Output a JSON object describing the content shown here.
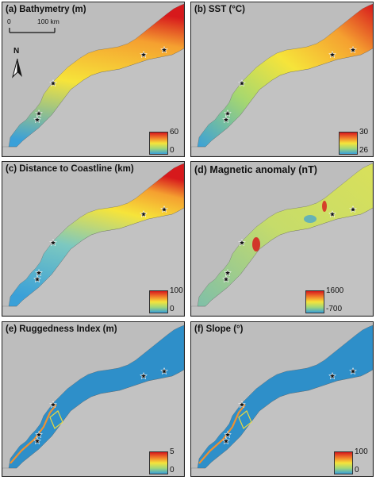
{
  "panels": [
    {
      "id": "a",
      "title": "(a) Bathymetry (m)",
      "legend_max": "60",
      "legend_min": "0",
      "style": "bathy"
    },
    {
      "id": "b",
      "title": "(b) SST (°C)",
      "legend_max": "30",
      "legend_min": "26",
      "style": "sst"
    },
    {
      "id": "c",
      "title": "(c) Distance to Coastline (km)",
      "legend_max": "100",
      "legend_min": "0",
      "style": "dist"
    },
    {
      "id": "d",
      "title": "(d) Magnetic anomaly (nT)",
      "legend_max": "1600",
      "legend_min": "-700",
      "style": "mag"
    },
    {
      "id": "e",
      "title": "(e) Ruggedness Index (m)",
      "legend_max": "5",
      "legend_min": "0",
      "style": "rug"
    },
    {
      "id": "f",
      "title": "(f) Slope (°)",
      "legend_max": "100",
      "legend_min": "0",
      "style": "rug"
    }
  ],
  "scale": {
    "start": "0",
    "end": "100 km"
  },
  "north_label": "N",
  "colors": {
    "land": "#bdbdbd",
    "high": "#d7191c",
    "mid": "#f6e43a",
    "low": "#3aa0d8",
    "rugged": "#2e8fc9"
  }
}
